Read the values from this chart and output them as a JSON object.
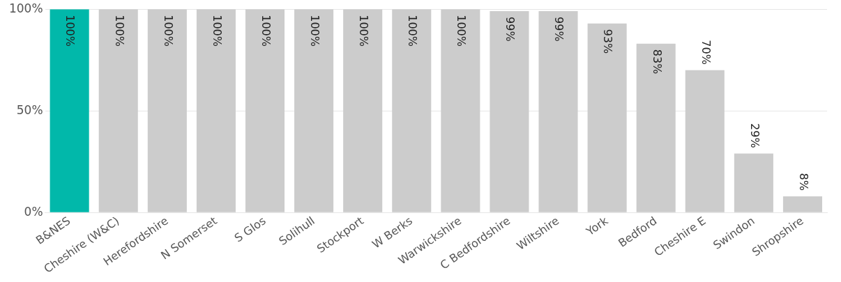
{
  "chart_data": {
    "type": "bar",
    "categories": [
      "B&NES",
      "Cheshire (W&C)",
      "Herefordshire",
      "N Somerset",
      "S Glos",
      "Solihull",
      "Stockport",
      "W Berks",
      "Warwickshire",
      "C Bedfordshire",
      "Wiltshire",
      "York",
      "Bedford",
      "Cheshire E",
      "Swindon",
      "Shropshire"
    ],
    "values": [
      100,
      100,
      100,
      100,
      100,
      100,
      100,
      100,
      100,
      99,
      99,
      93,
      83,
      70,
      29,
      8
    ],
    "colors": [
      "#01b8aa",
      "#cccccc",
      "#cccccc",
      "#cccccc",
      "#cccccc",
      "#cccccc",
      "#cccccc",
      "#cccccc",
      "#cccccc",
      "#cccccc",
      "#cccccc",
      "#cccccc",
      "#cccccc",
      "#cccccc",
      "#cccccc",
      "#cccccc"
    ],
    "value_labels": [
      "100%",
      "100%",
      "100%",
      "100%",
      "100%",
      "100%",
      "100%",
      "100%",
      "100%",
      "99%",
      "99%",
      "93%",
      "83%",
      "70%",
      "29%",
      "8%"
    ],
    "ylim": [
      0,
      100
    ],
    "yticks": [
      {
        "value": 0,
        "label": "0%"
      },
      {
        "value": 50,
        "label": "50%"
      },
      {
        "value": 100,
        "label": "100%"
      }
    ],
    "grid": "y",
    "legend": false
  }
}
